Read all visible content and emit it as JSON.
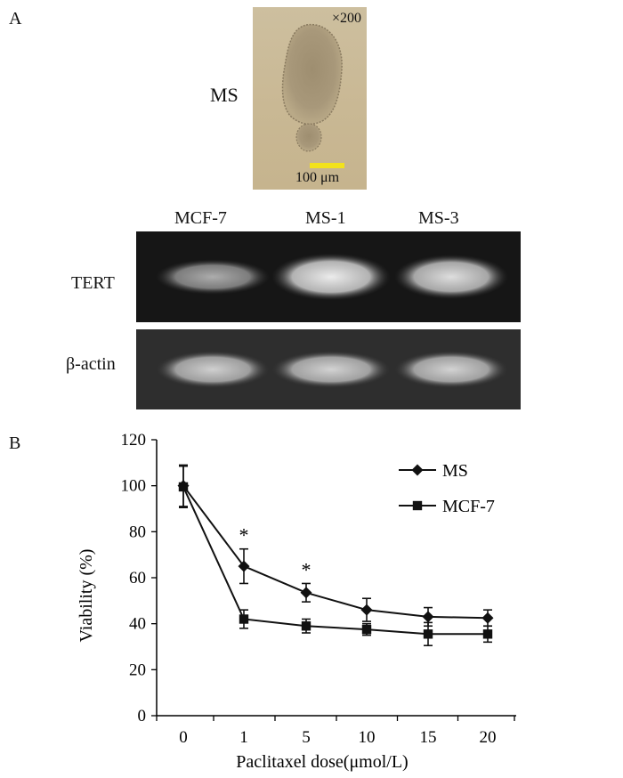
{
  "figure": {
    "panel_a_label": "A",
    "panel_b_label": "B",
    "micrograph": {
      "label": "MS",
      "magnification": "×200",
      "scale_bar": "100 μm",
      "scale_bar_color": "#f2e21c"
    },
    "gel": {
      "lanes": [
        "MCF-7",
        "MS-1",
        "MS-3"
      ],
      "rows": [
        {
          "label": "TERT",
          "intensity": [
            0.45,
            0.9,
            0.8
          ]
        },
        {
          "label": "β-actin",
          "intensity": [
            0.7,
            0.72,
            0.72
          ]
        }
      ]
    }
  },
  "chart_data": {
    "type": "line",
    "x": [
      "0",
      "1",
      "5",
      "10",
      "15",
      "20"
    ],
    "xlabel": "Paclitaxel dose(μmol/L)",
    "ylabel": "Viability (%)",
    "ylim": [
      0,
      120
    ],
    "yticks": [
      0,
      20,
      40,
      60,
      80,
      100,
      120
    ],
    "legend_position": "top-right",
    "series": [
      {
        "name": "MS",
        "marker": "diamond",
        "values": [
          100,
          65,
          53.5,
          46,
          43,
          42.5
        ],
        "errors": [
          9,
          7.5,
          4,
          5,
          4,
          3.5
        ]
      },
      {
        "name": "MCF-7",
        "marker": "square",
        "values": [
          99.5,
          42,
          39,
          37.5,
          35.5,
          35.5
        ],
        "errors": [
          9,
          4,
          3,
          2.5,
          5,
          3.5
        ]
      }
    ],
    "annotations": [
      {
        "x": "1",
        "text": "*"
      },
      {
        "x": "5",
        "text": "*"
      }
    ]
  }
}
